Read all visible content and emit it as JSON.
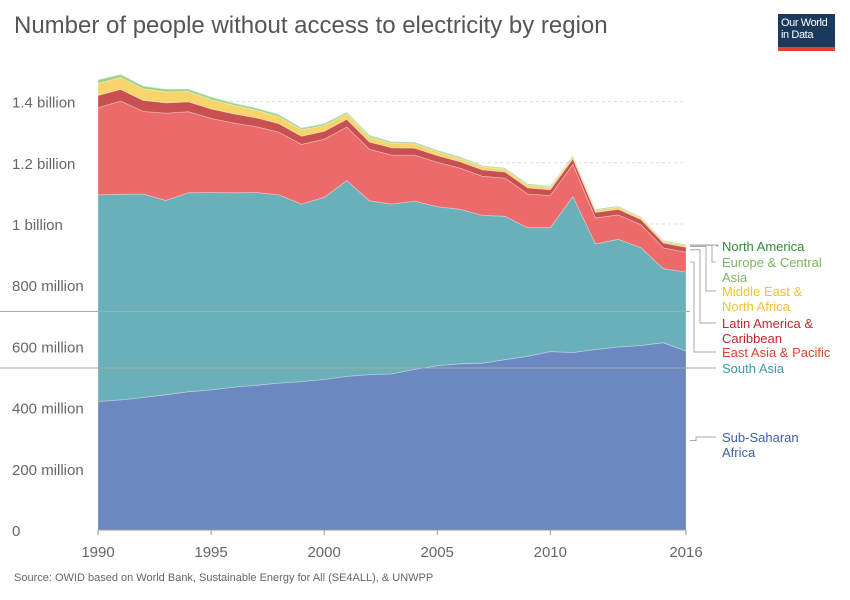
{
  "title": "Number of people without access to electricity by region",
  "logo": {
    "line1": "Our World",
    "line2": "in Data",
    "bg": "#1a3a5c",
    "accent": "#e0442e"
  },
  "source": "Source: OWID based on World Bank, Sustainable Energy for All (SE4ALL), & UNWPP",
  "chart_data": {
    "type": "area",
    "stacked": true,
    "x": [
      1990,
      1991,
      1992,
      1993,
      1994,
      1995,
      1996,
      1997,
      1998,
      1999,
      2000,
      2001,
      2002,
      2003,
      2004,
      2005,
      2006,
      2007,
      2008,
      2009,
      2010,
      2011,
      2012,
      2013,
      2014,
      2015,
      2016
    ],
    "ylim": [
      0,
      1500000000
    ],
    "y_ticks": [
      0,
      200000000,
      400000000,
      600000000,
      800000000,
      1000000000,
      1200000000,
      1400000000
    ],
    "y_tick_labels": [
      "0",
      "200 million",
      "400 million",
      "600 million",
      "800 million",
      "1 billion",
      "1.2 billion",
      "1.4 billion"
    ],
    "x_ticks": [
      1990,
      1995,
      2000,
      2005,
      2010,
      2016
    ],
    "x_tick_labels": [
      "1990",
      "1995",
      "2000",
      "2005",
      "2010",
      "2016"
    ],
    "grid": "horizontal dashed",
    "legend": "right, labels at series end",
    "series": [
      {
        "name": "Sub-Saharan Africa",
        "label_lines": [
          "Sub-Saharan",
          "Africa"
        ],
        "color": "#6b89c0",
        "text_color": "#3b5fa8",
        "values": [
          420000000,
          425000000,
          433000000,
          442000000,
          452000000,
          458000000,
          467000000,
          473000000,
          480000000,
          485000000,
          492000000,
          502000000,
          508000000,
          510000000,
          525000000,
          537000000,
          543000000,
          545000000,
          557000000,
          568000000,
          583000000,
          580000000,
          590000000,
          598000000,
          603000000,
          612000000,
          585000000
        ]
      },
      {
        "name": "South Asia",
        "label_lines": [
          "South Asia"
        ],
        "color": "#6ab0b8",
        "text_color": "#3d9aa6",
        "values": [
          675000000,
          672000000,
          665000000,
          635000000,
          650000000,
          645000000,
          635000000,
          630000000,
          615000000,
          580000000,
          595000000,
          640000000,
          568000000,
          555000000,
          550000000,
          520000000,
          505000000,
          483000000,
          468000000,
          420000000,
          405000000,
          510000000,
          345000000,
          352000000,
          320000000,
          242000000,
          258000000
        ]
      },
      {
        "name": "East Asia & Pacific",
        "label_lines": [
          "East Asia & Pacific"
        ],
        "color": "#ec6a6a",
        "text_color": "#e0442e",
        "values": [
          285000000,
          305000000,
          270000000,
          285000000,
          265000000,
          242000000,
          228000000,
          215000000,
          205000000,
          195000000,
          190000000,
          175000000,
          168000000,
          160000000,
          150000000,
          145000000,
          135000000,
          128000000,
          125000000,
          110000000,
          105000000,
          105000000,
          85000000,
          80000000,
          75000000,
          68000000,
          65000000
        ]
      },
      {
        "name": "Latin America & Caribbean",
        "label_lines": [
          "Latin America &",
          "Caribbean"
        ],
        "color": "#c85050",
        "text_color": "#c1272d",
        "values": [
          40000000,
          38000000,
          36000000,
          34000000,
          32000000,
          31000000,
          30000000,
          29000000,
          28000000,
          27000000,
          26000000,
          25000000,
          24000000,
          24000000,
          23000000,
          22000000,
          21000000,
          21000000,
          20000000,
          20000000,
          19000000,
          18000000,
          18000000,
          18000000,
          17000000,
          16000000,
          16000000
        ]
      },
      {
        "name": "Middle East & North Africa",
        "label_lines": [
          "Middle East &",
          "North Africa"
        ],
        "color": "#f7d56a",
        "text_color": "#f2c232",
        "values": [
          40000000,
          39000000,
          38000000,
          36000000,
          34000000,
          31000000,
          28000000,
          25000000,
          23000000,
          21000000,
          19000000,
          18000000,
          16000000,
          15000000,
          14000000,
          12000000,
          11000000,
          10000000,
          9000000,
          9000000,
          8000000,
          7000000,
          7000000,
          7000000,
          6000000,
          5000000,
          5000000
        ]
      },
      {
        "name": "Europe & Central Asia",
        "label_lines": [
          "Europe & Central",
          "Asia"
        ],
        "color": "#9ccf82",
        "text_color": "#7cb663",
        "values": [
          10000000,
          9000000,
          8000000,
          8000000,
          7000000,
          7000000,
          6000000,
          6000000,
          6000000,
          5000000,
          5000000,
          5000000,
          5000000,
          4000000,
          4000000,
          4000000,
          4000000,
          3000000,
          3000000,
          3000000,
          3000000,
          3000000,
          2000000,
          2000000,
          2000000,
          2000000,
          2000000
        ]
      },
      {
        "name": "North America",
        "label_lines": [
          "North America"
        ],
        "color": "#3aa64a",
        "text_color": "#2e8b3a",
        "values": [
          1000000,
          1000000,
          1000000,
          1000000,
          1000000,
          1000000,
          1000000,
          1000000,
          1000000,
          1000000,
          1000000,
          1000000,
          1000000,
          1000000,
          1000000,
          1000000,
          1000000,
          1000000,
          1000000,
          1000000,
          1000000,
          1000000,
          1000000,
          1000000,
          1000000,
          1000000,
          1000000
        ]
      }
    ]
  }
}
